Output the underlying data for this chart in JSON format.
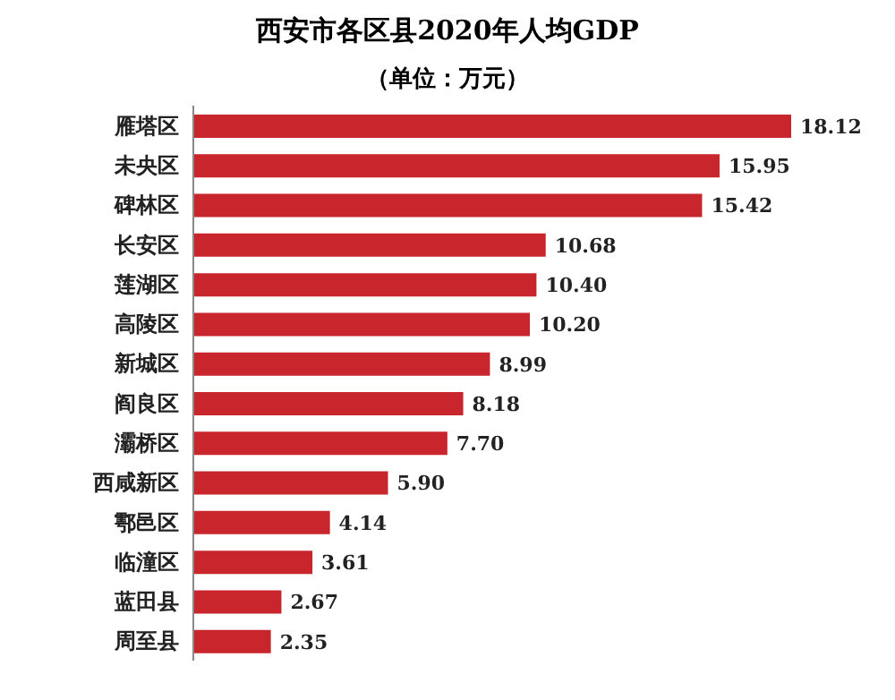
{
  "chart_data": {
    "type": "bar",
    "orientation": "horizontal",
    "title": "西安市各区县2020年人均GDP",
    "subtitle": "（单位：万元）",
    "categories": [
      "雁塔区",
      "未央区",
      "碑林区",
      "长安区",
      "莲湖区",
      "高陵区",
      "新城区",
      "阎良区",
      "灞桥区",
      "西咸新区",
      "鄠邑区",
      "临潼区",
      "蓝田县",
      "周至县"
    ],
    "values": [
      18.12,
      15.95,
      15.42,
      10.68,
      10.4,
      10.2,
      8.99,
      8.18,
      7.7,
      5.9,
      4.14,
      3.61,
      2.67,
      2.35
    ],
    "value_labels": [
      "18.12",
      "15.95",
      "15.42",
      "10.68",
      "10.40",
      "10.20",
      "8.99",
      "8.18",
      "7.70",
      "5.90",
      "4.14",
      "3.61",
      "2.67",
      "2.35"
    ],
    "color": "#c8252c",
    "tick_labels": "y"
  }
}
